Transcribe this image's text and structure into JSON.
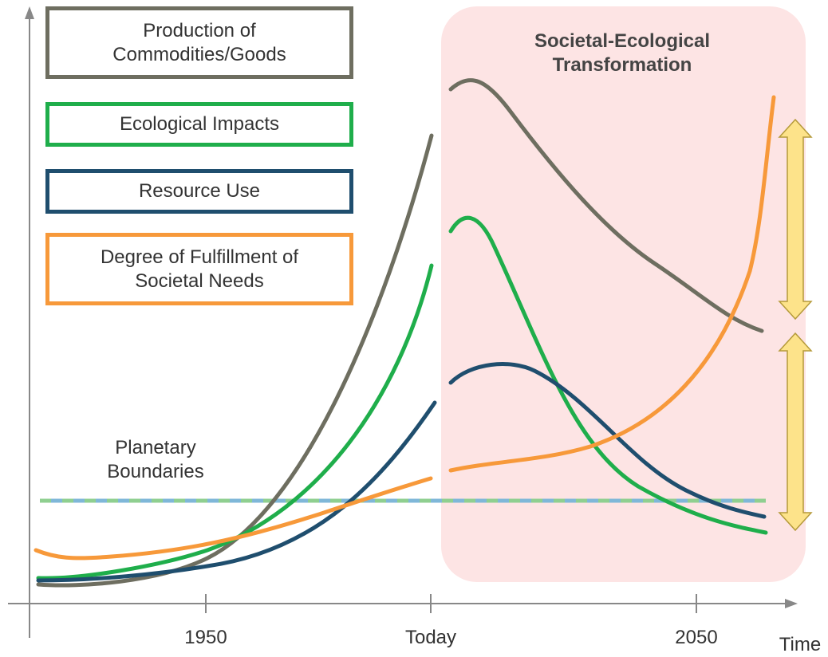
{
  "legend": {
    "items": [
      {
        "label": "Production of Commodities/Goods"
      },
      {
        "label": "Ecological Impacts"
      },
      {
        "label": "Resource Use"
      },
      {
        "label": "Degree of Fulfillment of Societal Needs"
      }
    ]
  },
  "transformation": {
    "title": "Societal-Ecological Transformation"
  },
  "boundary": {
    "label": "Planetary Boundaries"
  },
  "axis": {
    "x_labels": [
      "1950",
      "Today",
      "2050"
    ],
    "x_title": "Time"
  }
}
